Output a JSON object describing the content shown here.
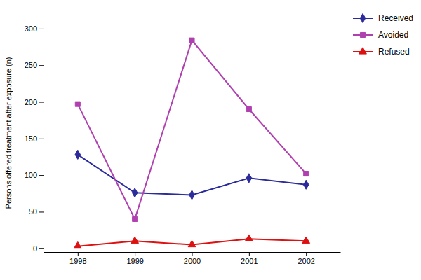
{
  "chart_data": {
    "type": "line",
    "y_label": "Persons offered treatment after exposure (n)",
    "x": [
      1998,
      1999,
      2000,
      2001,
      2002
    ],
    "xlim": [
      1997.4,
      2002.6
    ],
    "xticks": [
      1998,
      1999,
      2000,
      2001,
      2002
    ],
    "ylim": [
      -5,
      320
    ],
    "yticks": [
      0,
      50,
      100,
      150,
      200,
      250,
      300
    ],
    "grid": false,
    "legend": "right",
    "series": [
      {
        "name": "Received",
        "color": "#2b2b9b",
        "marker": "diamond",
        "values": [
          128,
          76,
          73,
          96,
          87
        ]
      },
      {
        "name": "Avoided",
        "color": "#b040b0",
        "marker": "square",
        "values": [
          197,
          40,
          284,
          190,
          102
        ]
      },
      {
        "name": "Refused",
        "color": "#dd1111",
        "marker": "triangle",
        "values": [
          3,
          10,
          5,
          13,
          10
        ]
      }
    ]
  }
}
